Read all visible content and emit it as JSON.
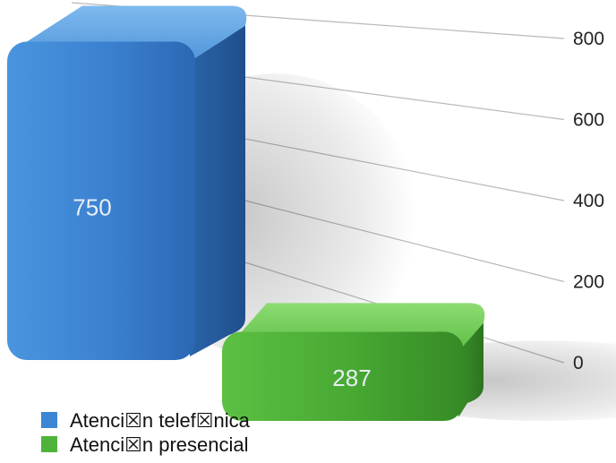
{
  "chart_data": {
    "type": "bar",
    "categories": [
      "Atenci☒n telef☒nica",
      "Atenci☒n presencial"
    ],
    "values": [
      750,
      287
    ],
    "data_labels": [
      "750",
      "287"
    ],
    "colors": [
      "#3a86d4",
      "#4fb33a"
    ],
    "yticks": [
      0,
      200,
      400,
      600,
      800
    ],
    "ylim": [
      0,
      800
    ],
    "ytick_position": "right",
    "grid": true,
    "legend_position": "bottom-left",
    "style": "3d",
    "title": "",
    "xlabel": "",
    "ylabel": ""
  }
}
